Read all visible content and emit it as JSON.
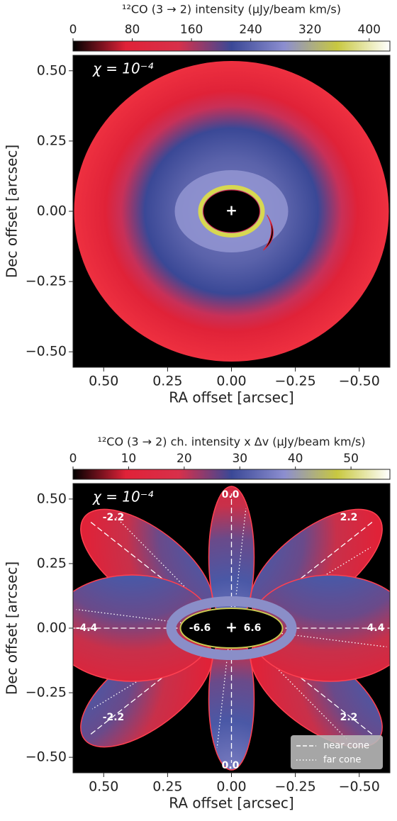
{
  "chart_data": [
    {
      "type": "image",
      "colorbar_label": "¹²CO (3 → 2) intensity (μJy/beam km/s)",
      "colorbar_lim": [
        0,
        428
      ],
      "colorbar_ticks": [
        0,
        80,
        160,
        240,
        320,
        400
      ],
      "colormap": [
        "#000000",
        "#e02238",
        "#d8304a",
        "#3a4896",
        "#8c8ed0",
        "#c8c840",
        "#ffffff"
      ],
      "annotation": "χ = 10⁻⁴",
      "xlabel": "RA offset [arcsec]",
      "ylabel": "Dec offset [arcsec]",
      "xlim": [
        0.62,
        -0.62
      ],
      "ylim": [
        -0.555,
        0.555
      ],
      "xticks": [
        {
          "value": 0.5,
          "label": "0.50"
        },
        0.25,
        {
          "value": 0,
          "label": "0.00"
        },
        {
          "value": -0.25,
          "label": "−0.25"
        },
        {
          "value": -0.5,
          "label": "−0.50"
        }
      ],
      "yticks": [
        {
          "value": 0.5,
          "label": "0.50"
        },
        0.25,
        {
          "value": 0,
          "label": "0.00"
        },
        {
          "value": -0.25,
          "label": "−0.25"
        },
        {
          "value": -0.5,
          "label": "−0.50"
        }
      ]
    },
    {
      "type": "image",
      "colorbar_label": "¹²CO (3 → 2) ch. intensity x Δv (μJy/beam km/s)",
      "colorbar_lim": [
        0,
        57
      ],
      "colorbar_ticks": [
        0,
        10,
        20,
        30,
        40,
        50
      ],
      "colormap": [
        "#000000",
        "#e02238",
        "#d8304a",
        "#3a4896",
        "#8c8ed0",
        "#c8c840",
        "#ffffff"
      ],
      "annotation": "χ = 10⁻⁴",
      "xlabel": "RA offset [arcsec]",
      "ylabel": "Dec offset [arcsec]",
      "xlim": [
        0.62,
        -0.62
      ],
      "ylim": [
        -0.56,
        0.56
      ],
      "xticks": [
        {
          "value": 0.5,
          "label": "0.50"
        },
        0.25,
        {
          "value": 0,
          "label": "0.00"
        },
        {
          "value": -0.25,
          "label": "−0.25"
        },
        {
          "value": -0.5,
          "label": "−0.50"
        }
      ],
      "yticks": [
        {
          "value": 0.5,
          "label": "0.50"
        },
        0.25,
        {
          "value": 0,
          "label": "0.00"
        },
        {
          "value": -0.25,
          "label": "−0.25"
        },
        {
          "value": -0.5,
          "label": "−0.50"
        }
      ],
      "velocity_labels": [
        "0.0",
        "2.2",
        "4.4",
        "2.2",
        "0.0",
        "-2.2",
        "-4.4",
        "-2.2",
        "-6.6",
        "6.6"
      ],
      "legend": [
        "near cone",
        "far cone"
      ]
    }
  ]
}
